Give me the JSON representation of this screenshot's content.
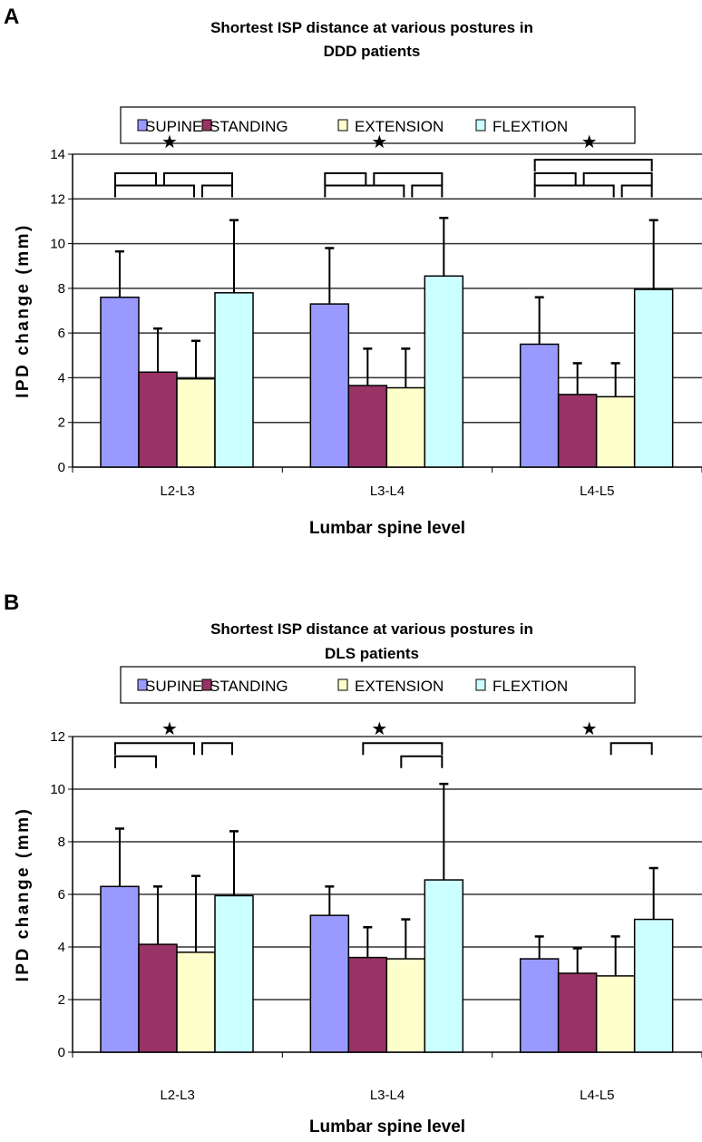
{
  "chart_data": [
    {
      "type": "bar",
      "panel": "A",
      "title": "Shortest ISP distance at various postures in",
      "title_line2": "DDD patients",
      "xlabel": "Lumbar spine level",
      "ylabel": "IPD change (mm)",
      "ylim": [
        0,
        14
      ],
      "yticks": [
        0,
        2,
        4,
        6,
        8,
        10,
        12,
        14
      ],
      "categories": [
        "L2-L3",
        "L3-L4",
        "L4-L5"
      ],
      "legend_position": "top",
      "grid": true,
      "series": [
        {
          "name": "SUPINE",
          "color": "#9999ff",
          "values": [
            7.6,
            7.3,
            5.5
          ],
          "error_upper": [
            9.65,
            9.8,
            7.6
          ]
        },
        {
          "name": "STANDING",
          "color": "#993366",
          "values": [
            4.25,
            3.65,
            3.25
          ],
          "error_upper": [
            6.2,
            5.3,
            4.65
          ]
        },
        {
          "name": "EXTENSION",
          "color": "#ffffcc",
          "values": [
            3.95,
            3.55,
            3.15
          ],
          "error_upper": [
            5.65,
            5.3,
            4.65
          ]
        },
        {
          "name": "FLEXTION",
          "color": "#ccffff",
          "values": [
            7.8,
            8.55,
            7.95
          ],
          "error_upper": [
            11.05,
            11.15,
            11.05
          ]
        }
      ],
      "significance": [
        {
          "category": 0,
          "star": "★",
          "brackets": [
            [
              0,
              1,
              1
            ],
            [
              1,
              3,
              1
            ],
            [
              0,
              2,
              0
            ],
            [
              2,
              3,
              0
            ]
          ]
        },
        {
          "category": 1,
          "star": "★",
          "brackets": [
            [
              0,
              1,
              1
            ],
            [
              1,
              3,
              1
            ],
            [
              0,
              2,
              0
            ],
            [
              2,
              3,
              0
            ]
          ]
        },
        {
          "category": 2,
          "star": "★",
          "brackets": [
            [
              0,
              3,
              2
            ],
            [
              0,
              1,
              1
            ],
            [
              1,
              3,
              1
            ],
            [
              0,
              2,
              0
            ],
            [
              2,
              3,
              0
            ]
          ]
        }
      ],
      "bracket_levels": [
        12.6,
        13.15,
        13.75
      ],
      "star_level": 14.6
    },
    {
      "type": "bar",
      "panel": "B",
      "title": "Shortest ISP distance at various postures in",
      "title_line2": "DLS patients",
      "xlabel": "Lumbar spine level",
      "ylabel": "IPD change (mm)",
      "ylim": [
        0,
        12
      ],
      "yticks": [
        0,
        2,
        4,
        6,
        8,
        10,
        12
      ],
      "categories": [
        "L2-L3",
        "L3-L4",
        "L4-L5"
      ],
      "legend_position": "top",
      "grid": true,
      "series": [
        {
          "name": "SUPINE",
          "color": "#9999ff",
          "values": [
            6.3,
            5.2,
            3.55
          ],
          "error_upper": [
            8.5,
            6.3,
            4.4
          ]
        },
        {
          "name": "STANDING",
          "color": "#993366",
          "values": [
            4.1,
            3.6,
            3.0
          ],
          "error_upper": [
            6.3,
            4.75,
            3.95
          ]
        },
        {
          "name": "EXTENSION",
          "color": "#ffffcc",
          "values": [
            3.8,
            3.55,
            2.9
          ],
          "error_upper": [
            6.7,
            5.05,
            4.4
          ]
        },
        {
          "name": "FLEXTION",
          "color": "#ccffff",
          "values": [
            5.95,
            6.55,
            5.05
          ],
          "error_upper": [
            8.4,
            10.2,
            7.0
          ]
        }
      ],
      "significance": [
        {
          "category": 0,
          "star": "★",
          "brackets": [
            [
              0,
              2,
              1
            ],
            [
              2,
              3,
              1
            ],
            [
              0,
              1,
              0
            ]
          ]
        },
        {
          "category": 1,
          "star": "★",
          "brackets": [
            [
              1,
              3,
              1
            ],
            [
              2,
              3,
              0
            ]
          ]
        },
        {
          "category": 2,
          "star": "★",
          "brackets": [
            [
              2,
              3,
              1
            ]
          ]
        }
      ],
      "bracket_levels": [
        11.25,
        11.75
      ],
      "star_level": 12.35
    }
  ]
}
